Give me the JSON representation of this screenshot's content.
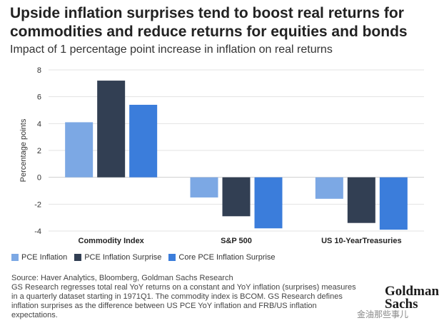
{
  "title": "Upside inflation surprises tend to boost real returns for commodities and reduce returns for equities and bonds",
  "subtitle": "Impact of 1 percentage point increase in inflation on real returns",
  "chart_data": {
    "type": "bar",
    "categories": [
      "Commodity Index",
      "S&P 500",
      "US 10-YearTreasuries"
    ],
    "series": [
      {
        "name": "PCE Inflation",
        "color": "#7ca8e4",
        "values": [
          4.1,
          -1.5,
          -1.6
        ]
      },
      {
        "name": "PCE Inflation Surprise",
        "color": "#323f53",
        "values": [
          7.2,
          -2.9,
          -3.4
        ]
      },
      {
        "name": "Core PCE Inflation Surprise",
        "color": "#3b7ddb",
        "values": [
          5.4,
          -3.8,
          -3.9
        ]
      }
    ],
    "ylabel": "Percentage points",
    "xlabel": "",
    "ylim": [
      -4,
      8
    ],
    "yticks": [
      8,
      6,
      4,
      2,
      0,
      -2,
      -4
    ],
    "grid": true
  },
  "footnote": {
    "source": "Source: Haver Analytics, Bloomberg, Goldman Sachs Research",
    "text": "GS Research regresses total real YoY returns on a constant and YoY inflation (surprises) measures in a quarterly dataset starting in 1971Q1. The commodity index is BCOM. GS Research defines inflation surprises as the difference between US PCE YoY inflation and FRB/US inflation expectations."
  },
  "logo": {
    "line1": "Goldman",
    "line2": "Sachs"
  },
  "watermark": "金油那些事儿"
}
